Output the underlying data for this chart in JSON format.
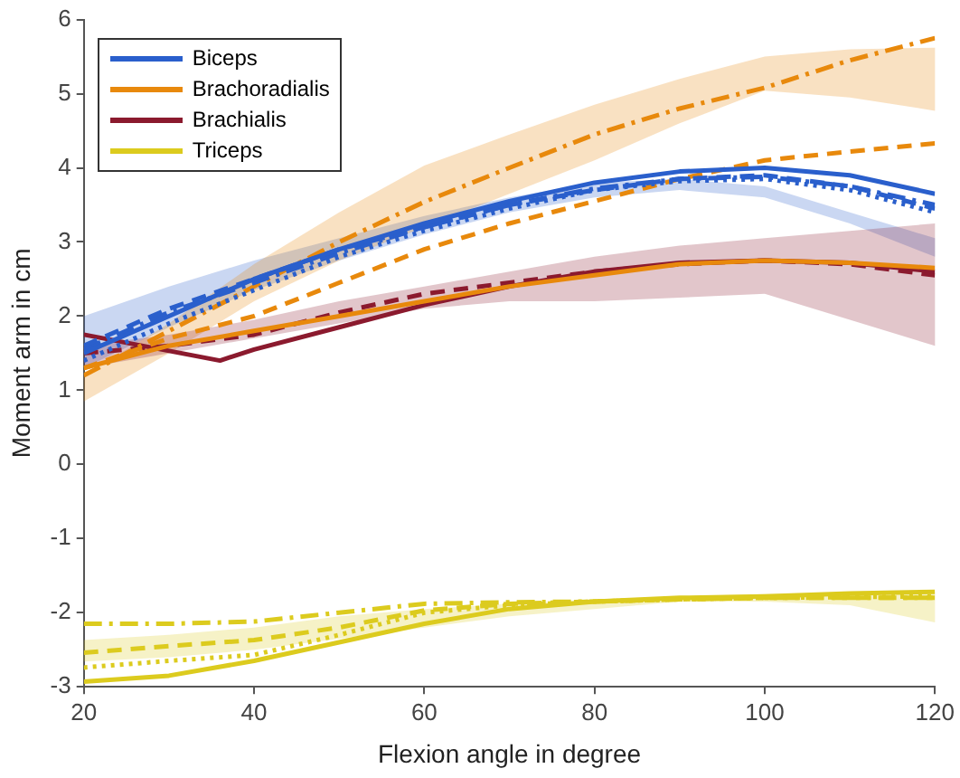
{
  "chart_data": {
    "type": "line",
    "xlabel": "Flexion angle in degree",
    "ylabel": "Moment arm in cm",
    "x": [
      20,
      30,
      40,
      50,
      60,
      70,
      80,
      90,
      100,
      110,
      120
    ],
    "xlim": [
      20,
      120
    ],
    "xticks": [
      20,
      40,
      60,
      80,
      100,
      120
    ],
    "ylim": [
      -3,
      6
    ],
    "yticks": [
      -3,
      -2,
      -1,
      0,
      1,
      2,
      3,
      4,
      5,
      6
    ],
    "grid": false,
    "legend": "top left",
    "marker": "none",
    "series": [
      {
        "name": "Biceps",
        "color": "#2a5fcc",
        "line_style": "solid",
        "values": [
          1.5,
          2.0,
          2.5,
          2.9,
          3.25,
          3.55,
          3.8,
          3.95,
          4.0,
          3.9,
          3.65
        ]
      },
      {
        "color": "#2a5fcc",
        "line_style": "dashed",
        "values": [
          1.6,
          2.1,
          2.5,
          2.9,
          3.2,
          3.5,
          3.7,
          3.85,
          3.9,
          3.75,
          3.45
        ],
        "lower": [
          1.3,
          1.85,
          2.35,
          2.75,
          3.1,
          3.4,
          3.6,
          3.7,
          3.6,
          3.25,
          2.8
        ],
        "upper": [
          2.0,
          2.4,
          2.75,
          3.05,
          3.35,
          3.6,
          3.8,
          3.85,
          3.75,
          3.4,
          3.05
        ]
      },
      {
        "color": "#2a5fcc",
        "line_style": "dotted",
        "values": [
          1.4,
          1.9,
          2.35,
          2.8,
          3.15,
          3.45,
          3.7,
          3.82,
          3.85,
          3.7,
          3.4
        ]
      },
      {
        "color": "#2a5fcc",
        "line_style": "dashdot",
        "values": [
          1.55,
          2.05,
          2.45,
          2.85,
          3.2,
          3.5,
          3.72,
          3.85,
          3.88,
          3.75,
          3.5
        ]
      },
      {
        "name": "Brachoradialis",
        "color": "#e8890c",
        "line_style": "solid",
        "values": [
          1.3,
          1.6,
          1.8,
          2.0,
          2.2,
          2.4,
          2.55,
          2.7,
          2.75,
          2.72,
          2.65
        ]
      },
      {
        "color": "#e8890c",
        "line_style": "dashed",
        "values": [
          1.3,
          1.7,
          2.0,
          2.45,
          2.9,
          3.25,
          3.55,
          3.85,
          4.1,
          4.22,
          4.33
        ],
        "lower": [
          0.85,
          1.5,
          2.2,
          2.75,
          3.2,
          3.65,
          4.1,
          4.6,
          5.04,
          4.95,
          4.77
        ],
        "upper": [
          1.2,
          1.9,
          2.7,
          3.4,
          4.03,
          4.45,
          4.85,
          5.2,
          5.5,
          5.6,
          5.62
        ]
      },
      {
        "color": "#e8890c",
        "line_style": "dashdot",
        "values": [
          1.2,
          1.8,
          2.4,
          3.0,
          3.54,
          4.0,
          4.45,
          4.8,
          5.08,
          5.45,
          5.75
        ]
      },
      {
        "name": "Brachialis",
        "color": "#8b1a2e",
        "line_style": "solid",
        "x": [
          20,
          36,
          40,
          50,
          60,
          70,
          80,
          90,
          100,
          110,
          120
        ],
        "values": [
          1.75,
          1.4,
          1.55,
          1.85,
          2.15,
          2.4,
          2.6,
          2.72,
          2.75,
          2.72,
          2.6
        ]
      },
      {
        "color": "#8b1a2e",
        "line_style": "dashed",
        "values": [
          1.5,
          1.6,
          1.75,
          2.05,
          2.3,
          2.45,
          2.6,
          2.7,
          2.75,
          2.7,
          2.55
        ],
        "lower": [
          1.3,
          1.5,
          1.7,
          1.9,
          2.1,
          2.2,
          2.2,
          2.25,
          2.3,
          1.95,
          1.6
        ],
        "upper": [
          1.6,
          1.75,
          1.95,
          2.2,
          2.4,
          2.6,
          2.8,
          2.95,
          3.05,
          3.15,
          3.25
        ]
      },
      {
        "name": "Triceps",
        "color": "#dccb1e",
        "line_style": "solid",
        "values": [
          -2.93,
          -2.85,
          -2.65,
          -2.4,
          -2.15,
          -1.95,
          -1.85,
          -1.8,
          -1.78,
          -1.74,
          -1.72
        ]
      },
      {
        "color": "#dccb1e",
        "line_style": "dashed",
        "values": [
          -2.54,
          -2.45,
          -2.37,
          -2.2,
          -1.97,
          -1.88,
          -1.85,
          -1.82,
          -1.8,
          -1.8,
          -1.8
        ],
        "lower": [
          -2.66,
          -2.6,
          -2.5,
          -2.35,
          -2.2,
          -2.05,
          -1.95,
          -1.85,
          -1.85,
          -1.9,
          -2.13
        ],
        "upper": [
          -2.37,
          -2.3,
          -2.2,
          -2.05,
          -1.95,
          -1.88,
          -1.82,
          -1.78,
          -1.75,
          -1.74,
          -1.72
        ]
      },
      {
        "color": "#dccb1e",
        "line_style": "dotted",
        "values": [
          -2.74,
          -2.65,
          -2.57,
          -2.3,
          -2.0,
          -1.9,
          -1.85,
          -1.82,
          -1.8,
          -1.79,
          -1.78
        ]
      },
      {
        "color": "#dccb1e",
        "line_style": "dashdot",
        "values": [
          -2.15,
          -2.15,
          -2.12,
          -2.0,
          -1.88,
          -1.86,
          -1.85,
          -1.82,
          -1.8,
          -1.8,
          -1.8
        ]
      }
    ]
  }
}
